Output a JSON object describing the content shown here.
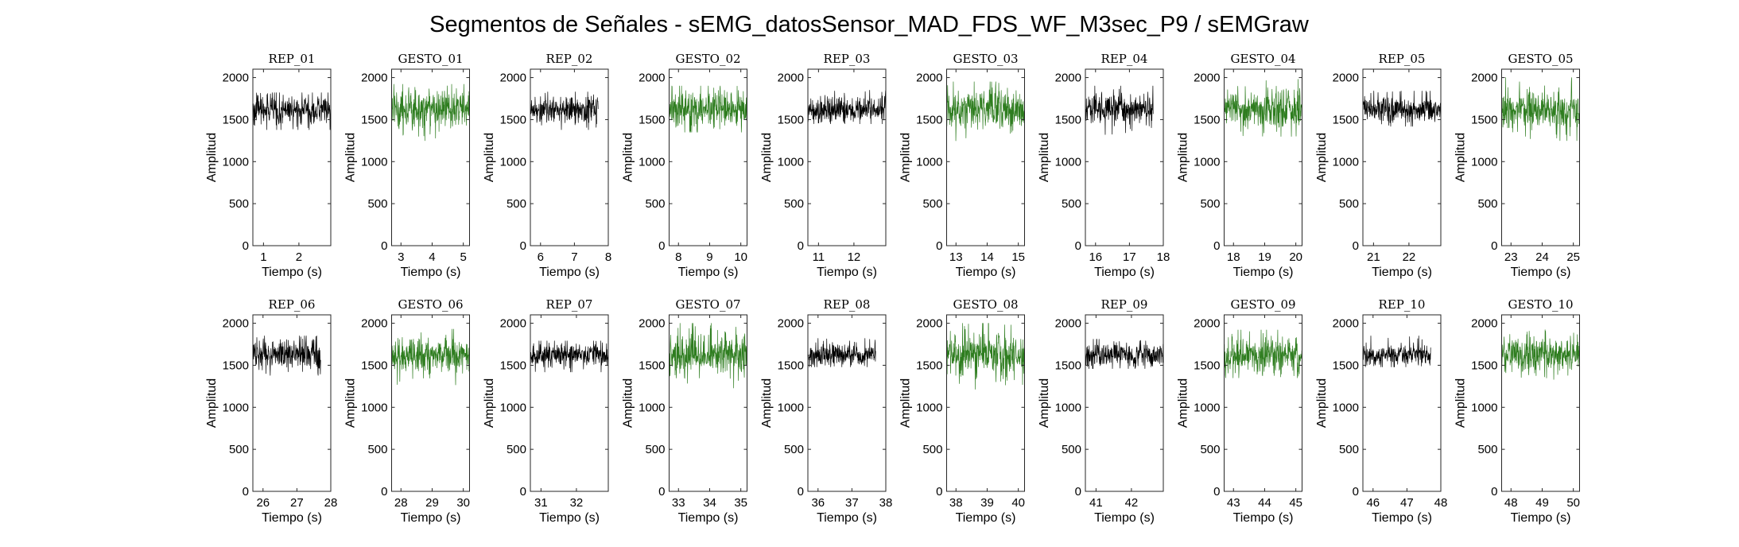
{
  "figure": {
    "title": "Segmentos de Señales - sEMG_datosSensor_MAD_FDS_WF_M3sec_P9 / sEMGraw"
  },
  "colors": {
    "rep": "#000000",
    "gesto": "#2e7d1f",
    "axis": "#262626"
  },
  "chart_data": [
    {
      "type": "line",
      "title": "REP_01",
      "xlabel": "Tiempo (s)",
      "ylabel": "Amplitud",
      "xlim": [
        0.7,
        2.9
      ],
      "ylim": [
        0,
        2100
      ],
      "xticks": [
        1,
        2
      ],
      "yticks": [
        0,
        500,
        1000,
        1500,
        2000
      ],
      "signal_range": [
        0.7,
        2.9
      ],
      "series": [
        {
          "name": "REP_01",
          "color": "#000000",
          "mean": 1620,
          "spread": 85,
          "min": 1380,
          "max": 1820
        }
      ]
    },
    {
      "type": "line",
      "title": "GESTO_01",
      "xlabel": "Tiempo (s)",
      "ylabel": "Amplitud",
      "xlim": [
        2.7,
        5.2
      ],
      "ylim": [
        0,
        2100
      ],
      "xticks": [
        3,
        4,
        5
      ],
      "yticks": [
        0,
        500,
        1000,
        1500,
        2000
      ],
      "signal_range": [
        2.7,
        5.2
      ],
      "series": [
        {
          "name": "GESTO_01",
          "color": "#2e7d1f",
          "mean": 1630,
          "spread": 120,
          "min": 1250,
          "max": 1920
        }
      ]
    },
    {
      "type": "line",
      "title": "REP_02",
      "xlabel": "Tiempo (s)",
      "ylabel": "Amplitud",
      "xlim": [
        5.7,
        8
      ],
      "ylim": [
        0,
        2100
      ],
      "xticks": [
        6,
        7,
        8
      ],
      "yticks": [
        0,
        500,
        1000,
        1500,
        2000
      ],
      "signal_range": [
        5.7,
        7.7
      ],
      "series": [
        {
          "name": "REP_02",
          "color": "#000000",
          "mean": 1620,
          "spread": 85,
          "min": 1380,
          "max": 1830
        }
      ]
    },
    {
      "type": "line",
      "title": "GESTO_02",
      "xlabel": "Tiempo (s)",
      "ylabel": "Amplitud",
      "xlim": [
        7.7,
        10.2
      ],
      "ylim": [
        0,
        2100
      ],
      "xticks": [
        8,
        9,
        10
      ],
      "yticks": [
        0,
        500,
        1000,
        1500,
        2000
      ],
      "signal_range": [
        7.7,
        10.2
      ],
      "series": [
        {
          "name": "GESTO_02",
          "color": "#2e7d1f",
          "mean": 1630,
          "spread": 110,
          "min": 1350,
          "max": 1900
        }
      ]
    },
    {
      "type": "line",
      "title": "REP_03",
      "xlabel": "Tiempo (s)",
      "ylabel": "Amplitud",
      "xlim": [
        10.7,
        12.9
      ],
      "ylim": [
        0,
        2100
      ],
      "xticks": [
        11,
        12
      ],
      "yticks": [
        0,
        500,
        1000,
        1500,
        2000
      ],
      "signal_range": [
        10.7,
        12.9
      ],
      "series": [
        {
          "name": "REP_03",
          "color": "#000000",
          "mean": 1620,
          "spread": 75,
          "min": 1450,
          "max": 1850
        }
      ]
    },
    {
      "type": "line",
      "title": "GESTO_03",
      "xlabel": "Tiempo (s)",
      "ylabel": "Amplitud",
      "xlim": [
        12.7,
        15.2
      ],
      "ylim": [
        0,
        2100
      ],
      "xticks": [
        13,
        14,
        15
      ],
      "yticks": [
        0,
        500,
        1000,
        1500,
        2000
      ],
      "signal_range": [
        12.7,
        15.2
      ],
      "series": [
        {
          "name": "GESTO_03",
          "color": "#2e7d1f",
          "mean": 1630,
          "spread": 110,
          "min": 1170,
          "max": 1950
        }
      ]
    },
    {
      "type": "line",
      "title": "REP_04",
      "xlabel": "Tiempo (s)",
      "ylabel": "Amplitud",
      "xlim": [
        15.7,
        18
      ],
      "ylim": [
        0,
        2100
      ],
      "xticks": [
        16,
        17,
        18
      ],
      "yticks": [
        0,
        500,
        1000,
        1500,
        2000
      ],
      "signal_range": [
        15.7,
        17.7
      ],
      "series": [
        {
          "name": "REP_04",
          "color": "#000000",
          "mean": 1630,
          "spread": 90,
          "min": 1300,
          "max": 1900
        }
      ]
    },
    {
      "type": "line",
      "title": "GESTO_04",
      "xlabel": "Tiempo (s)",
      "ylabel": "Amplitud",
      "xlim": [
        17.7,
        20.2
      ],
      "ylim": [
        0,
        2100
      ],
      "xticks": [
        18,
        19,
        20
      ],
      "yticks": [
        0,
        500,
        1000,
        1500,
        2000
      ],
      "signal_range": [
        17.7,
        20.2
      ],
      "series": [
        {
          "name": "GESTO_04",
          "color": "#2e7d1f",
          "mean": 1620,
          "spread": 115,
          "min": 1300,
          "max": 1980
        }
      ]
    },
    {
      "type": "line",
      "title": "REP_05",
      "xlabel": "Tiempo (s)",
      "ylabel": "Amplitud",
      "xlim": [
        20.7,
        22.9
      ],
      "ylim": [
        0,
        2100
      ],
      "xticks": [
        21,
        22
      ],
      "yticks": [
        0,
        500,
        1000,
        1500,
        2000
      ],
      "signal_range": [
        20.7,
        22.9
      ],
      "series": [
        {
          "name": "REP_05",
          "color": "#000000",
          "mean": 1620,
          "spread": 80,
          "min": 1420,
          "max": 1840
        }
      ]
    },
    {
      "type": "line",
      "title": "GESTO_05",
      "xlabel": "Tiempo (s)",
      "ylabel": "Amplitud",
      "xlim": [
        22.7,
        25.2
      ],
      "ylim": [
        0,
        2100
      ],
      "xticks": [
        23,
        24,
        25
      ],
      "yticks": [
        0,
        500,
        1000,
        1500,
        2000
      ],
      "signal_range": [
        22.7,
        25.2
      ],
      "series": [
        {
          "name": "GESTO_05",
          "color": "#2e7d1f",
          "mean": 1620,
          "spread": 115,
          "min": 1250,
          "max": 2000
        }
      ]
    },
    {
      "type": "line",
      "title": "REP_06",
      "xlabel": "Tiempo (s)",
      "ylabel": "Amplitud",
      "xlim": [
        25.7,
        28
      ],
      "ylim": [
        0,
        2100
      ],
      "xticks": [
        26,
        27,
        28
      ],
      "yticks": [
        0,
        500,
        1000,
        1500,
        2000
      ],
      "signal_range": [
        25.7,
        27.7
      ],
      "series": [
        {
          "name": "REP_06",
          "color": "#000000",
          "mean": 1630,
          "spread": 90,
          "min": 1380,
          "max": 1850
        }
      ]
    },
    {
      "type": "line",
      "title": "GESTO_06",
      "xlabel": "Tiempo (s)",
      "ylabel": "Amplitud",
      "xlim": [
        27.7,
        30.2
      ],
      "ylim": [
        0,
        2100
      ],
      "xticks": [
        28,
        29,
        30
      ],
      "yticks": [
        0,
        500,
        1000,
        1500,
        2000
      ],
      "signal_range": [
        27.7,
        30.2
      ],
      "series": [
        {
          "name": "GESTO_06",
          "color": "#2e7d1f",
          "mean": 1630,
          "spread": 110,
          "min": 1250,
          "max": 1930
        }
      ]
    },
    {
      "type": "line",
      "title": "REP_07",
      "xlabel": "Tiempo (s)",
      "ylabel": "Amplitud",
      "xlim": [
        30.7,
        32.9
      ],
      "ylim": [
        0,
        2100
      ],
      "xticks": [
        31,
        32
      ],
      "yticks": [
        0,
        500,
        1000,
        1500,
        2000
      ],
      "signal_range": [
        30.7,
        32.9
      ],
      "series": [
        {
          "name": "REP_07",
          "color": "#000000",
          "mean": 1620,
          "spread": 70,
          "min": 1420,
          "max": 1790
        }
      ]
    },
    {
      "type": "line",
      "title": "GESTO_07",
      "xlabel": "Tiempo (s)",
      "ylabel": "Amplitud",
      "xlim": [
        32.7,
        35.2
      ],
      "ylim": [
        0,
        2100
      ],
      "xticks": [
        33,
        34,
        35
      ],
      "yticks": [
        0,
        500,
        1000,
        1500,
        2000
      ],
      "signal_range": [
        32.7,
        35.2
      ],
      "series": [
        {
          "name": "GESTO_07",
          "color": "#2e7d1f",
          "mean": 1630,
          "spread": 130,
          "min": 1230,
          "max": 2000
        }
      ]
    },
    {
      "type": "line",
      "title": "REP_08",
      "xlabel": "Tiempo (s)",
      "ylabel": "Amplitud",
      "xlim": [
        35.7,
        38
      ],
      "ylim": [
        0,
        2100
      ],
      "xticks": [
        36,
        37,
        38
      ],
      "yticks": [
        0,
        500,
        1000,
        1500,
        2000
      ],
      "signal_range": [
        35.7,
        37.7
      ],
      "series": [
        {
          "name": "REP_08",
          "color": "#000000",
          "mean": 1620,
          "spread": 65,
          "min": 1480,
          "max": 1820
        }
      ]
    },
    {
      "type": "line",
      "title": "GESTO_08",
      "xlabel": "Tiempo (s)",
      "ylabel": "Amplitud",
      "xlim": [
        37.7,
        40.2
      ],
      "ylim": [
        0,
        2100
      ],
      "xticks": [
        38,
        39,
        40
      ],
      "yticks": [
        0,
        500,
        1000,
        1500,
        2000
      ],
      "signal_range": [
        37.7,
        40.2
      ],
      "series": [
        {
          "name": "GESTO_08",
          "color": "#2e7d1f",
          "mean": 1620,
          "spread": 130,
          "min": 1170,
          "max": 2000
        }
      ]
    },
    {
      "type": "line",
      "title": "REP_09",
      "xlabel": "Tiempo (s)",
      "ylabel": "Amplitud",
      "xlim": [
        40.7,
        42.9
      ],
      "ylim": [
        0,
        2100
      ],
      "xticks": [
        41,
        42
      ],
      "yticks": [
        0,
        500,
        1000,
        1500,
        2000
      ],
      "signal_range": [
        40.7,
        42.9
      ],
      "series": [
        {
          "name": "REP_09",
          "color": "#000000",
          "mean": 1620,
          "spread": 70,
          "min": 1460,
          "max": 1810
        }
      ]
    },
    {
      "type": "line",
      "title": "GESTO_09",
      "xlabel": "Tiempo (s)",
      "ylabel": "Amplitud",
      "xlim": [
        42.7,
        45.2
      ],
      "ylim": [
        0,
        2100
      ],
      "xticks": [
        43,
        44,
        45
      ],
      "yticks": [
        0,
        500,
        1000,
        1500,
        2000
      ],
      "signal_range": [
        42.7,
        45.2
      ],
      "series": [
        {
          "name": "GESTO_09",
          "color": "#2e7d1f",
          "mean": 1620,
          "spread": 105,
          "min": 1350,
          "max": 1920
        }
      ]
    },
    {
      "type": "line",
      "title": "REP_10",
      "xlabel": "Tiempo (s)",
      "ylabel": "Amplitud",
      "xlim": [
        45.7,
        48
      ],
      "ylim": [
        0,
        2100
      ],
      "xticks": [
        46,
        47,
        48
      ],
      "yticks": [
        0,
        500,
        1000,
        1500,
        2000
      ],
      "signal_range": [
        45.7,
        47.7
      ],
      "series": [
        {
          "name": "REP_10",
          "color": "#000000",
          "mean": 1620,
          "spread": 65,
          "min": 1480,
          "max": 1850
        }
      ]
    },
    {
      "type": "line",
      "title": "GESTO_10",
      "xlabel": "Tiempo (s)",
      "ylabel": "Amplitud",
      "xlim": [
        47.7,
        50.2
      ],
      "ylim": [
        0,
        2100
      ],
      "xticks": [
        48,
        49,
        50
      ],
      "yticks": [
        0,
        500,
        1000,
        1500,
        2000
      ],
      "signal_range": [
        47.7,
        50.2
      ],
      "series": [
        {
          "name": "GESTO_10",
          "color": "#2e7d1f",
          "mean": 1620,
          "spread": 110,
          "min": 1250,
          "max": 1950
        }
      ]
    }
  ]
}
